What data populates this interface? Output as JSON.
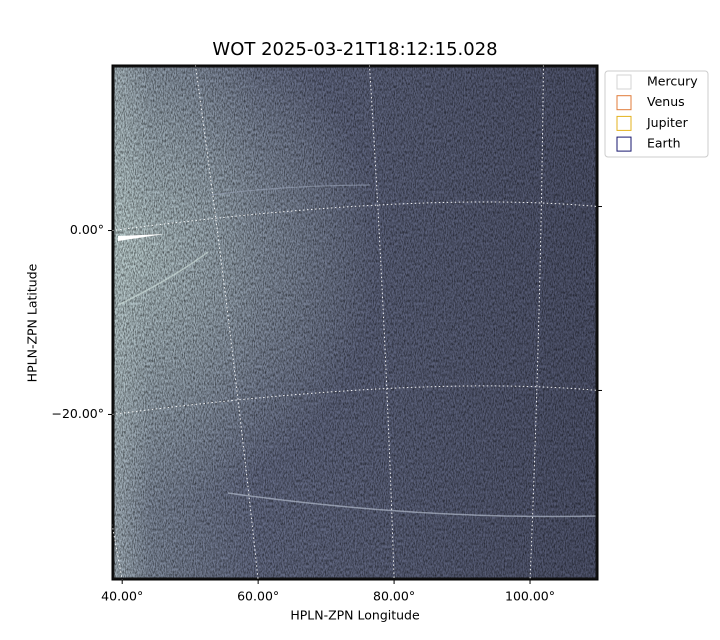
{
  "chart_data": {
    "type": "image",
    "title": "WOT 2025-03-21T18:12:15.028",
    "xlabel": "HPLN-ZPN Longitude",
    "ylabel": "HPLN-ZPN Latitude",
    "xlim": [
      38.5,
      110
    ],
    "ylim": [
      -38,
      18
    ],
    "xticks": [
      {
        "value": 40,
        "label": "40.00°"
      },
      {
        "value": 60,
        "label": "60.00°"
      },
      {
        "value": 80,
        "label": "80.00°"
      },
      {
        "value": 100,
        "label": "100.00°"
      }
    ],
    "yticks": [
      {
        "value": 0,
        "label": "0.00°"
      },
      {
        "value": -20,
        "label": "−20.00°"
      }
    ],
    "grid": true,
    "legend_position": "outside upper right",
    "legend": [
      {
        "name": "Mercury",
        "color": "#d3d3d3"
      },
      {
        "name": "Venus",
        "color": "#e07b39"
      },
      {
        "name": "Jupiter",
        "color": "#e3b21e"
      },
      {
        "name": "Earth",
        "color": "#16166e"
      }
    ]
  }
}
